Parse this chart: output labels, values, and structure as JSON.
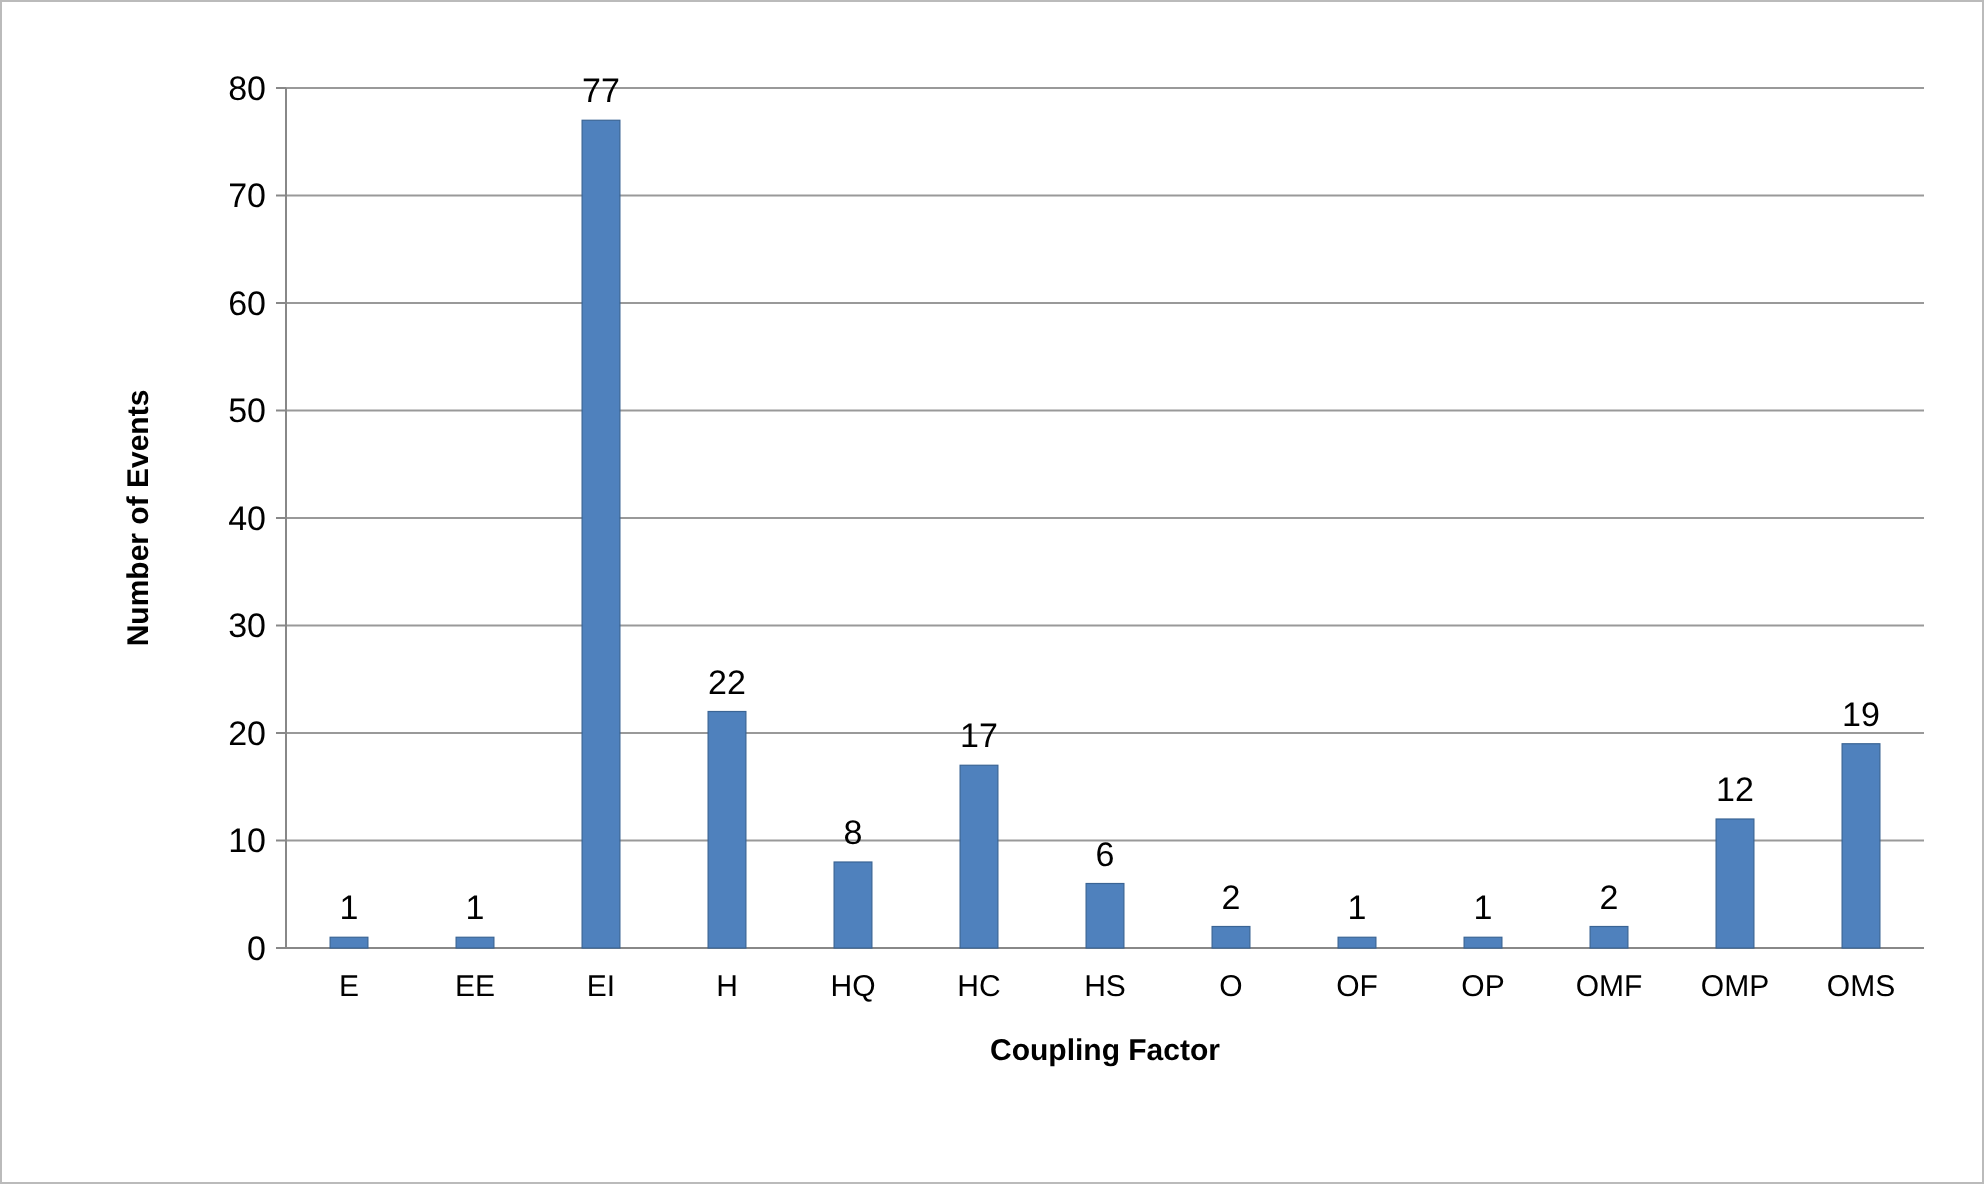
{
  "chart_data": {
    "type": "bar",
    "xlabel": "Coupling Factor",
    "ylabel": "Number of Events",
    "categories": [
      "E",
      "EE",
      "EI",
      "H",
      "HQ",
      "HC",
      "HS",
      "O",
      "OF",
      "OP",
      "OMF",
      "OMP",
      "OMS"
    ],
    "values": [
      1,
      1,
      77,
      22,
      8,
      17,
      6,
      2,
      1,
      1,
      2,
      12,
      19
    ],
    "color": "#4f81bd",
    "ylim": [
      0,
      80
    ],
    "yticks": [
      0,
      10,
      20,
      30,
      40,
      50,
      60,
      70,
      80
    ],
    "grid": "y",
    "data_labels": true
  }
}
